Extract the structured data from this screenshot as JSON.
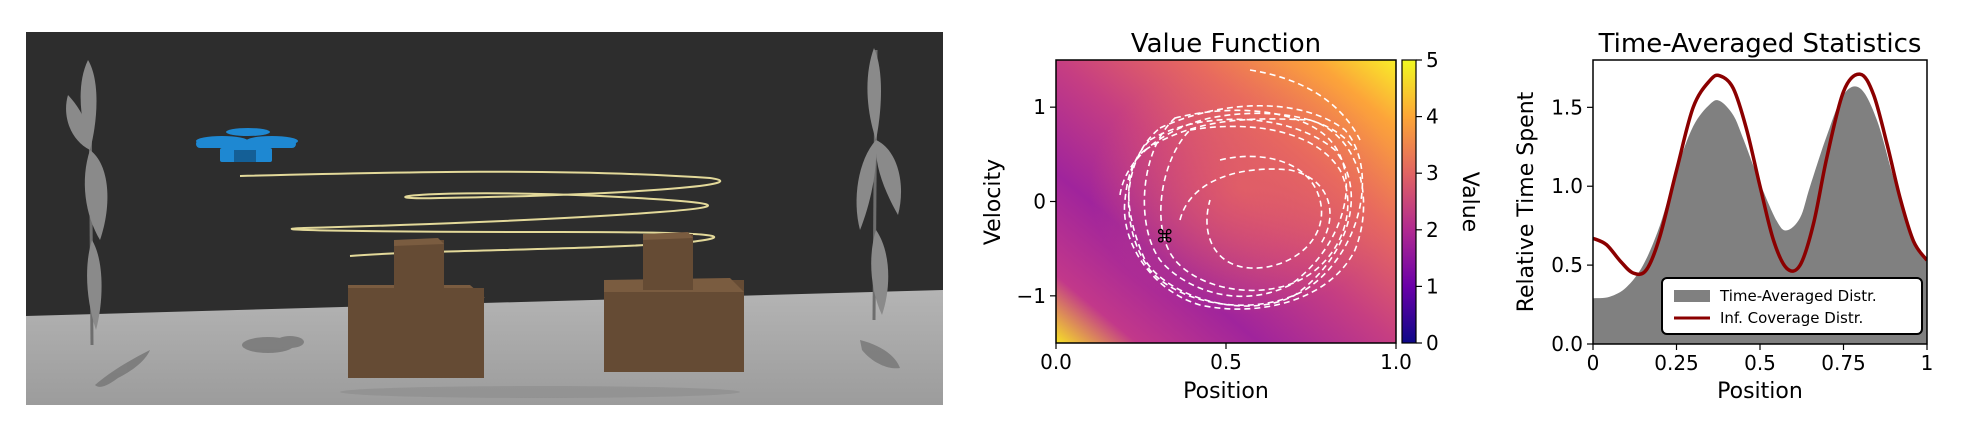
{
  "scene": {
    "colors": {
      "background": "#2d2d2d",
      "floor": "#a4a4a4",
      "drone": "#1e88d2",
      "box": "#654b34",
      "trajectory": "#e3d99a",
      "fan": "#8a8a8a"
    }
  },
  "chart_data": [
    {
      "type": "heatmap",
      "title": "Value Function",
      "xlabel": "Position",
      "ylabel": "Velocity",
      "xlim": [
        0.0,
        1.0
      ],
      "ylim": [
        -1.5,
        1.5
      ],
      "xticks": [
        "0.0",
        "0.5",
        "1.0"
      ],
      "yticks": [
        "1",
        "0",
        "−1"
      ],
      "colorbar": {
        "label": "Value",
        "range": [
          0,
          5
        ],
        "ticks": [
          "0",
          "1",
          "2",
          "3",
          "4",
          "5"
        ],
        "colors": [
          "#0d0887",
          "#6a00a8",
          "#b12a90",
          "#e16462",
          "#fca636",
          "#f0f921"
        ]
      },
      "marker": {
        "x": 0.32,
        "y": -0.37,
        "symbol": "⌘"
      },
      "trajectory_style": "white dashed",
      "grid": false
    },
    {
      "type": "area",
      "title": "Time-Averaged Statistics",
      "xlabel": "Position",
      "ylabel": "Relative Time Spent",
      "xlim": [
        0,
        1
      ],
      "ylim": [
        0.0,
        1.8
      ],
      "xticks": [
        "0",
        "0.25",
        "0.5",
        "0.75",
        "1"
      ],
      "yticks": [
        "0.0",
        "0.5",
        "1.0",
        "1.5"
      ],
      "legend_position": "bottom-right",
      "series": [
        {
          "name": "Time-Averaged Distr.",
          "kind": "area",
          "color": "#808080",
          "x": [
            0.0,
            0.05,
            0.1,
            0.15,
            0.2,
            0.25,
            0.3,
            0.35,
            0.38,
            0.42,
            0.45,
            0.5,
            0.55,
            0.58,
            0.62,
            0.65,
            0.7,
            0.75,
            0.8,
            0.85,
            0.9,
            0.95,
            1.0
          ],
          "y": [
            0.29,
            0.3,
            0.36,
            0.5,
            0.75,
            1.1,
            1.38,
            1.52,
            1.54,
            1.45,
            1.3,
            1.02,
            0.78,
            0.72,
            0.8,
            1.0,
            1.32,
            1.58,
            1.62,
            1.42,
            1.05,
            0.72,
            0.52
          ]
        },
        {
          "name": "Inf. Coverage Distr.",
          "kind": "line",
          "color": "#8b0000",
          "x": [
            0.0,
            0.04,
            0.08,
            0.12,
            0.16,
            0.2,
            0.25,
            0.3,
            0.35,
            0.38,
            0.42,
            0.46,
            0.5,
            0.54,
            0.58,
            0.62,
            0.66,
            0.7,
            0.75,
            0.8,
            0.84,
            0.88,
            0.92,
            0.96,
            1.0
          ],
          "y": [
            0.67,
            0.63,
            0.53,
            0.45,
            0.47,
            0.68,
            1.1,
            1.5,
            1.67,
            1.7,
            1.62,
            1.36,
            1.0,
            0.66,
            0.48,
            0.5,
            0.76,
            1.18,
            1.6,
            1.71,
            1.58,
            1.27,
            0.92,
            0.65,
            0.53
          ]
        }
      ]
    }
  ]
}
